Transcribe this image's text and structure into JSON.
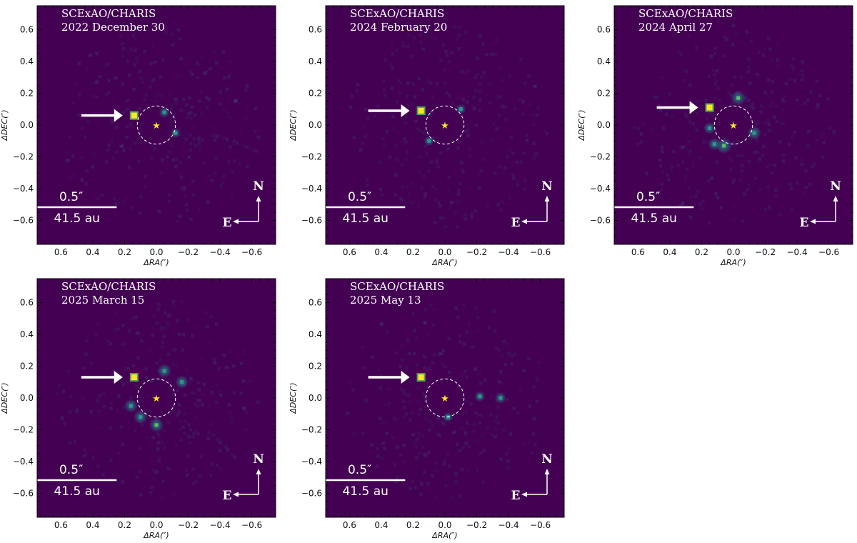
{
  "figure": {
    "instrument_label": "SCExAO/CHARIS",
    "x_axis_label": "ΔRA(″)",
    "y_axis_label": "ΔDEC(″)",
    "x_ticks": [
      "0.6",
      "0.4",
      "0.2",
      "0.0",
      "−0.2",
      "−0.4",
      "−0.6"
    ],
    "y_ticks": [
      "0.6",
      "0.4",
      "0.2",
      "0.0",
      "−0.2",
      "−0.4",
      "−0.6"
    ],
    "scale_bar": {
      "angular": "0.5″",
      "physical": "41.5 au",
      "length_arcsec": 0.5
    },
    "compass": {
      "north": "N",
      "east": "E"
    },
    "star_symbol": "★",
    "colors": {
      "background": "#440154",
      "companion": "#fde725",
      "speckle": "#21918c",
      "annotation": "#ffffff",
      "star": "#fde725"
    },
    "extent_arcsec": 0.75,
    "mask_radius_arcsec": 0.12
  },
  "chart_data": [
    {
      "type": "heatmap",
      "title": "SCExAO/CHARIS",
      "date": "2022 December 30",
      "companion_offset_arcsec": {
        "ra": 0.14,
        "dec": 0.06
      },
      "speckles": [
        {
          "ra": -0.05,
          "dec": 0.08,
          "i": 0.25
        },
        {
          "ra": -0.12,
          "dec": -0.05,
          "i": 0.2
        }
      ]
    },
    {
      "type": "heatmap",
      "title": "SCExAO/CHARIS",
      "date": "2024 February 20",
      "companion_offset_arcsec": {
        "ra": 0.15,
        "dec": 0.09
      },
      "speckles": [
        {
          "ra": 0.1,
          "dec": -0.1,
          "i": 0.2
        },
        {
          "ra": -0.1,
          "dec": 0.1,
          "i": 0.2
        }
      ]
    },
    {
      "type": "heatmap",
      "title": "SCExAO/CHARIS",
      "date": "2024 April 27",
      "companion_offset_arcsec": {
        "ra": 0.15,
        "dec": 0.11
      },
      "speckles": [
        {
          "ra": -0.03,
          "dec": 0.17,
          "i": 0.6
        },
        {
          "ra": 0.06,
          "dec": -0.13,
          "i": 0.7
        },
        {
          "ra": 0.12,
          "dec": -0.12,
          "i": 0.4
        },
        {
          "ra": -0.13,
          "dec": -0.05,
          "i": 0.5
        },
        {
          "ra": 0.15,
          "dec": -0.02,
          "i": 0.35
        }
      ]
    },
    {
      "type": "heatmap",
      "title": "SCExAO/CHARIS",
      "date": "2025 March 15",
      "companion_offset_arcsec": {
        "ra": 0.14,
        "dec": 0.13
      },
      "speckles": [
        {
          "ra": -0.05,
          "dec": 0.17,
          "i": 0.5
        },
        {
          "ra": -0.16,
          "dec": 0.1,
          "i": 0.45
        },
        {
          "ra": 0.16,
          "dec": -0.05,
          "i": 0.45
        },
        {
          "ra": 0.0,
          "dec": -0.17,
          "i": 0.55
        },
        {
          "ra": 0.1,
          "dec": -0.12,
          "i": 0.5
        }
      ]
    },
    {
      "type": "heatmap",
      "title": "SCExAO/CHARIS",
      "date": "2025 May 13",
      "companion_offset_arcsec": {
        "ra": 0.15,
        "dec": 0.13
      },
      "speckles": [
        {
          "ra": -0.35,
          "dec": 0.0,
          "i": 0.3
        },
        {
          "ra": -0.22,
          "dec": 0.01,
          "i": 0.25
        },
        {
          "ra": -0.02,
          "dec": -0.12,
          "i": 0.2
        }
      ]
    }
  ]
}
